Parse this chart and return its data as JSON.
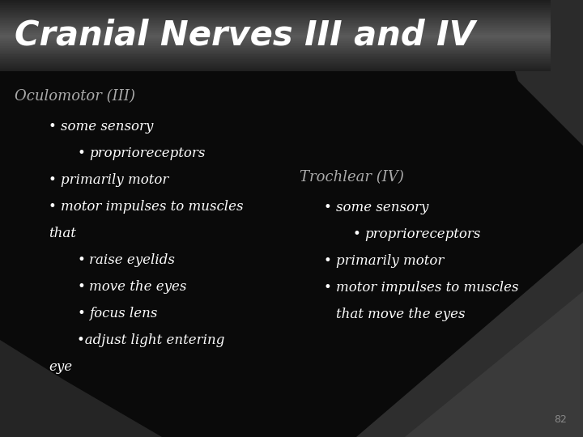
{
  "title": "Cranial Nerves III and IV",
  "title_text_color": "#ffffff",
  "slide_bg_color": "#0a0a0a",
  "body_text_color": "#ffffff",
  "section1_header": "Oculomotor (III)",
  "section1_header_color": "#aaaaaa",
  "section1_lines": [
    {
      "indent": 1,
      "bullet": true,
      "text": "some sensory"
    },
    {
      "indent": 2,
      "bullet": true,
      "text": "proprioreceptors"
    },
    {
      "indent": 1,
      "bullet": true,
      "text": "primarily motor"
    },
    {
      "indent": 1,
      "bullet": true,
      "text": "motor impulses to muscles"
    },
    {
      "indent": 1,
      "bullet": false,
      "text": "that"
    },
    {
      "indent": 2,
      "bullet": true,
      "text": "raise eyelids"
    },
    {
      "indent": 2,
      "bullet": true,
      "text": "move the eyes"
    },
    {
      "indent": 2,
      "bullet": true,
      "text": "focus lens"
    },
    {
      "indent": 2,
      "bullet": false,
      "text": "•adjust light entering"
    },
    {
      "indent": 1,
      "bullet": false,
      "text": "eye"
    }
  ],
  "section2_header": "Trochlear (IV)",
  "section2_header_color": "#aaaaaa",
  "section2_lines": [
    {
      "indent": 1,
      "bullet": true,
      "text": "some sensory"
    },
    {
      "indent": 2,
      "bullet": true,
      "text": "proprioreceptors"
    },
    {
      "indent": 1,
      "bullet": true,
      "text": "primarily motor"
    },
    {
      "indent": 1,
      "bullet": true,
      "text": "motor impulses to muscles"
    },
    {
      "indent": 1,
      "bullet": false,
      "text": "that move the eyes"
    }
  ],
  "page_number": "82",
  "title_bar_colors": [
    "#3a3a3a",
    "#6e6e6e",
    "#6e6e6e",
    "#3a3a3a"
  ],
  "dark_shape_color": "#2a2a2a",
  "darker_shape_color": "#1a1a1a"
}
